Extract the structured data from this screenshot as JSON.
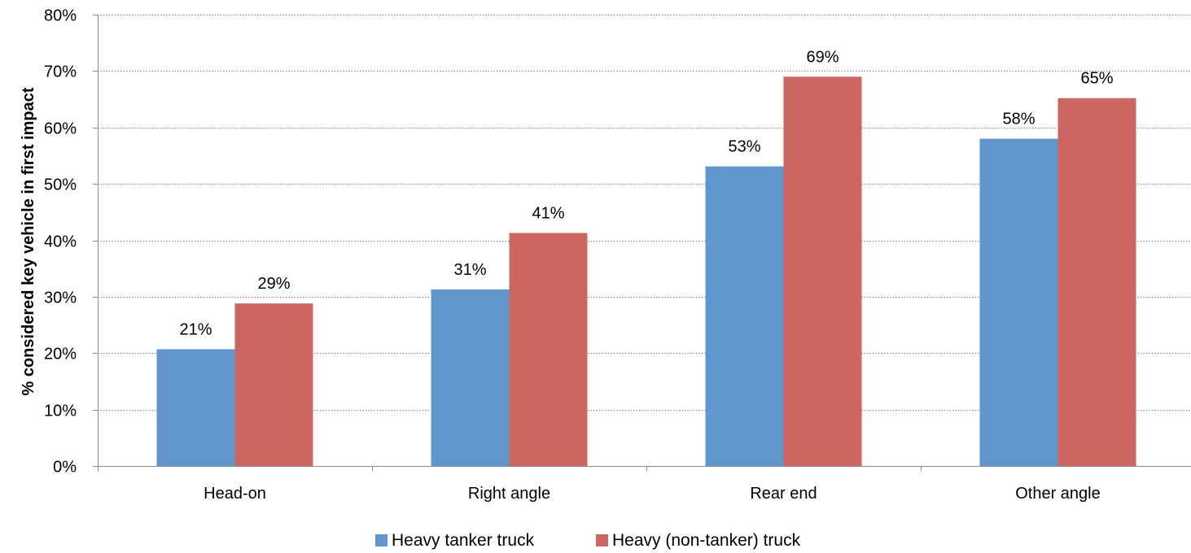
{
  "chart_data": {
    "type": "bar",
    "categories": [
      "Head-on",
      "Right angle",
      "Rear end",
      "Other angle"
    ],
    "series": [
      {
        "name": "Heavy tanker truck",
        "values": [
          20.7,
          31.3,
          53.1,
          58.0
        ],
        "labels": [
          "21%",
          "31%",
          "53%",
          "58%"
        ],
        "color": "#6096cb"
      },
      {
        "name": "Heavy (non-tanker) truck",
        "values": [
          28.8,
          41.3,
          69.0,
          65.2
        ],
        "labels": [
          "29%",
          "41%",
          "69%",
          "65%"
        ],
        "color": "#cc6660"
      }
    ],
    "title": "",
    "xlabel": "",
    "ylabel": "% considered key vehicle in first impact",
    "ylim": [
      0,
      80
    ],
    "yticks": [
      0,
      10,
      20,
      30,
      40,
      50,
      60,
      70,
      80
    ],
    "ytick_labels": [
      "0%",
      "10%",
      "20%",
      "30%",
      "40%",
      "50%",
      "60%",
      "70%",
      "80%"
    ],
    "grid": true,
    "grid_style": "dotted",
    "legend_position": "bottom"
  }
}
